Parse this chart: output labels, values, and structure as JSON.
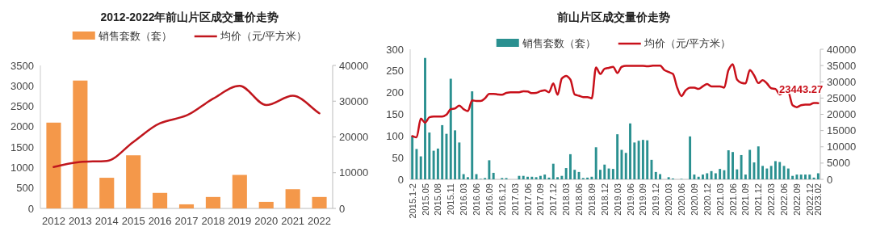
{
  "chart_data": [
    {
      "type": "bar",
      "title": "2012-2022年前山片区成交量价走势",
      "legend": "top",
      "grid": false,
      "categories": [
        "2012",
        "2013",
        "2014",
        "2015",
        "2016",
        "2017",
        "2018",
        "2019",
        "2020",
        "2021",
        "2022"
      ],
      "series": [
        {
          "name": "销售套数（套）",
          "type": "bar",
          "color": "#f4984a",
          "values": [
            2100,
            3130,
            750,
            1300,
            380,
            100,
            280,
            820,
            160,
            470,
            280
          ]
        },
        {
          "name": "均价（元/平方米）",
          "type": "line",
          "axis": "y2",
          "color": "#c0161d",
          "values": [
            11600,
            13000,
            13300,
            18600,
            23800,
            26000,
            30700,
            34300,
            28900,
            31500,
            26600
          ]
        }
      ],
      "ylim": [
        0,
        3500
      ],
      "yticks": [
        0,
        500,
        1000,
        1500,
        2000,
        2500,
        3000,
        3500
      ],
      "y2lim": [
        0,
        40000
      ],
      "y2ticks": [
        0,
        10000,
        20000,
        30000,
        40000
      ]
    },
    {
      "type": "bar",
      "title": "前山片区成交量价走势",
      "legend": "top",
      "grid": false,
      "categories": [
        "2015.1-2",
        null,
        null,
        "2015.05",
        null,
        null,
        "2015.08",
        null,
        null,
        "2015.11",
        null,
        null,
        "2016.03",
        null,
        null,
        "2016.06",
        null,
        null,
        "2016.09",
        null,
        null,
        "2016.12",
        null,
        null,
        "2017.03",
        null,
        null,
        "2017.06",
        null,
        null,
        "2017.09",
        null,
        null,
        "2017.12",
        null,
        null,
        "2018.03",
        null,
        null,
        "2018.06",
        null,
        null,
        "2018.09",
        null,
        null,
        "2018.12",
        null,
        null,
        "2019.03",
        null,
        null,
        "2019.06",
        null,
        null,
        "2019.09",
        null,
        null,
        "2019.12",
        null,
        null,
        "2020.03",
        null,
        null,
        "2020.06",
        null,
        null,
        "2020.09",
        null,
        null,
        "2020.12",
        null,
        null,
        "2021.03",
        null,
        null,
        "2021.06",
        null,
        null,
        "2021.09",
        null,
        null,
        "2021.12",
        null,
        null,
        "2022.03",
        null,
        null,
        "2022.06",
        null,
        null,
        "2022.09",
        null,
        null,
        "2022.12",
        null,
        "2023.02"
      ],
      "series": [
        {
          "name": "销售套数（套）",
          "type": "bar",
          "color": "#2a9090",
          "values": [
            100,
            70,
            53,
            280,
            108,
            66,
            71,
            125,
            105,
            232,
            113,
            85,
            12,
            5,
            203,
            12,
            1,
            3,
            44,
            15,
            0,
            3,
            3,
            0,
            0,
            8,
            8,
            6,
            6,
            5,
            8,
            11,
            4,
            36,
            5,
            8,
            26,
            58,
            22,
            17,
            3,
            4,
            6,
            74,
            22,
            34,
            25,
            24,
            104,
            68,
            61,
            129,
            85,
            89,
            91,
            90,
            45,
            17,
            12,
            0,
            5,
            2,
            0,
            1,
            0,
            99,
            11,
            6,
            11,
            14,
            19,
            14,
            24,
            21,
            67,
            63,
            23,
            56,
            11,
            68,
            39,
            76,
            31,
            25,
            31,
            42,
            40,
            31,
            25,
            8,
            11,
            11,
            11,
            11,
            4,
            14
          ]
        },
        {
          "name": "均价（元/平方米）",
          "type": "line",
          "axis": "y2",
          "color": "#c8101a",
          "values": [
            13300,
            12900,
            18700,
            17400,
            19100,
            19300,
            19300,
            19300,
            19900,
            21600,
            21800,
            22700,
            21600,
            21000,
            24300,
            24100,
            24100,
            24900,
            26300,
            26300,
            26100,
            26000,
            26600,
            26800,
            26800,
            26800,
            27100,
            27000,
            26500,
            26600,
            27100,
            27400,
            26800,
            29500,
            26000,
            31000,
            31800,
            30700,
            26100,
            25700,
            25300,
            25300,
            24900,
            34400,
            32400,
            34000,
            34300,
            34600,
            32700,
            34600,
            34900,
            34900,
            34900,
            34900,
            34900,
            34800,
            34900,
            35000,
            35000,
            33600,
            33000,
            32400,
            28200,
            25600,
            27400,
            28200,
            28200,
            27800,
            28600,
            29300,
            28600,
            28600,
            28600,
            28200,
            33600,
            35400,
            30700,
            29700,
            29500,
            33600,
            32000,
            29600,
            30500,
            29500,
            28000,
            27800,
            26100,
            27000,
            26800,
            22800,
            22200,
            22800,
            23000,
            23000,
            23500,
            23443.27
          ],
          "value_labels": [
            null,
            null,
            null,
            null,
            null,
            null,
            null,
            null,
            null,
            null,
            null,
            null,
            null,
            null,
            null,
            null,
            null,
            null,
            null,
            null,
            null,
            null,
            null,
            null,
            null,
            null,
            null,
            null,
            null,
            null,
            null,
            null,
            null,
            null,
            null,
            null,
            null,
            null,
            null,
            null,
            null,
            null,
            null,
            null,
            null,
            null,
            null,
            null,
            null,
            null,
            null,
            null,
            null,
            null,
            null,
            null,
            null,
            null,
            null,
            null,
            null,
            null,
            null,
            null,
            null,
            null,
            null,
            null,
            null,
            null,
            null,
            null,
            null,
            null,
            null,
            null,
            null,
            null,
            null,
            null,
            null,
            null,
            null,
            null,
            null,
            null,
            null,
            null,
            null,
            null,
            null,
            null,
            null,
            null,
            null,
            "23443.27"
          ]
        }
      ],
      "ylim": [
        0,
        300
      ],
      "yticks": [
        0,
        50,
        100,
        150,
        200,
        250,
        300
      ],
      "y2lim": [
        0,
        40000
      ],
      "y2ticks": [
        0,
        5000,
        10000,
        15000,
        20000,
        25000,
        30000,
        35000,
        40000
      ]
    }
  ]
}
